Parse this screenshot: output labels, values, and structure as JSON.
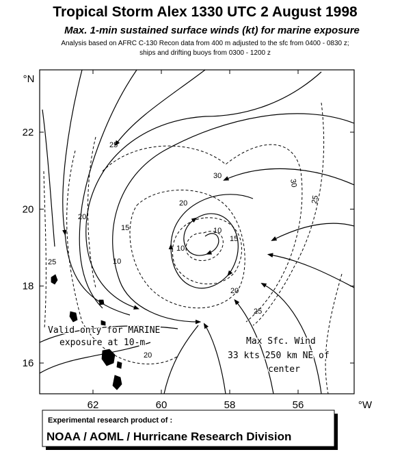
{
  "header": {
    "title": "Tropical Storm Alex  1330 UTC 2 August 1998",
    "subtitle": "Max. 1-min sustained surface winds (kt) for marine exposure",
    "note_lines": [
      "Analysis based on  AFRC C-130 Recon data from 400 m adjusted to the sfc from 0400 - 0830 z;",
      "ships and drifting buoys from 0300 - 1200 z"
    ]
  },
  "map": {
    "lat_unit": "°N",
    "lon_unit": "°W",
    "lat_lim": [
      15.2,
      23.62
    ],
    "lat_ticks": [
      22,
      20,
      18,
      16
    ],
    "lon_lim": [
      63.56,
      54.36
    ],
    "lon_ticks": [
      62,
      60,
      58,
      56
    ],
    "isotach_labels": [
      "25",
      "30",
      "30",
      "25",
      "20",
      "15",
      "20",
      "10",
      "15",
      "10",
      "10",
      "25",
      "20",
      "25",
      "20"
    ],
    "annotations": [
      "Valid only for MARINE",
      "exposure at 10-m",
      "Max Sfc. Wind",
      "33 kts  250 km NE of",
      "center"
    ]
  },
  "footer": {
    "line1": "Experimental research product of :",
    "line2": "NOAA / AOML / Hurricane Research Division"
  }
}
